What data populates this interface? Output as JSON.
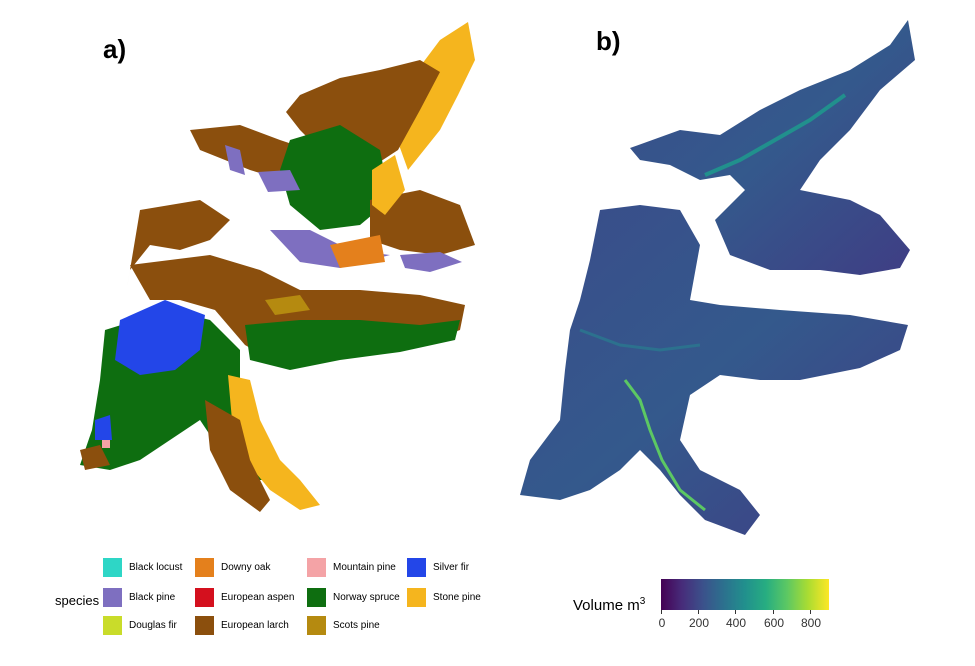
{
  "panels": {
    "a": {
      "label": "a)"
    },
    "b": {
      "label": "b)"
    }
  },
  "species_legend": {
    "title": "species",
    "items": [
      {
        "name": "Black locust",
        "color": "#2ed6c6"
      },
      {
        "name": "Black pine",
        "color": "#7e6fc0"
      },
      {
        "name": "Douglas fir",
        "color": "#c9dc2a"
      },
      {
        "name": "Downy oak",
        "color": "#e4801c"
      },
      {
        "name": "European aspen",
        "color": "#d4101e"
      },
      {
        "name": "European larch",
        "color": "#8b4f0d"
      },
      {
        "name": "Mountain pine",
        "color": "#f4a3a6"
      },
      {
        "name": "Norway spruce",
        "color": "#0e6e10"
      },
      {
        "name": "Scots pine",
        "color": "#b58a10"
      },
      {
        "name": "Silver fir",
        "color": "#2346e8"
      },
      {
        "name": "Stone pine",
        "color": "#f5b51e"
      }
    ]
  },
  "volume_legend": {
    "title": "Volume m",
    "superscript": "3",
    "ticks": [
      "0",
      "200",
      "400",
      "600",
      "800"
    ],
    "range": [
      0,
      900
    ]
  }
}
